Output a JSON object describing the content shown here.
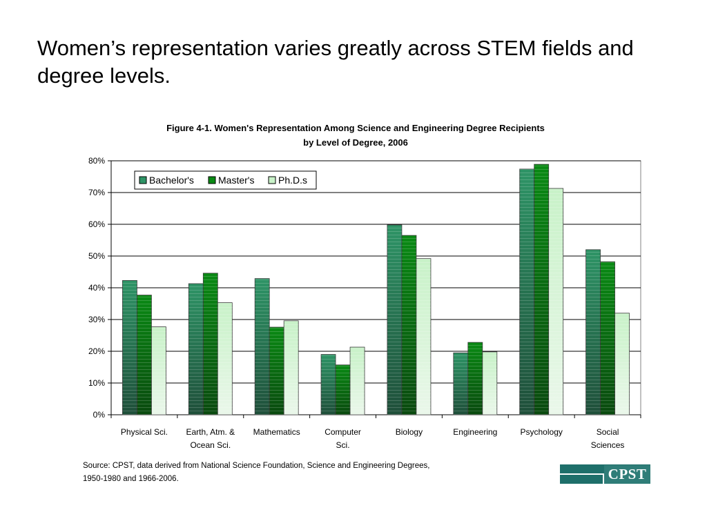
{
  "slide": {
    "title": "Women’s representation varies greatly across STEM fields and degree levels."
  },
  "chart_data": {
    "type": "bar",
    "title_line1": "Figure 4-1. Women's Representation Among Science and Engineering Degree Recipients",
    "title_line2": "by Level of Degree, 2006",
    "categories": [
      [
        "Physical Sci."
      ],
      [
        "Earth, Atm. &",
        "Ocean Sci."
      ],
      [
        "Mathematics"
      ],
      [
        "Computer",
        "Sci."
      ],
      [
        "Biology"
      ],
      [
        "Engineering"
      ],
      [
        "Psychology"
      ],
      [
        "Social",
        "Sciences"
      ]
    ],
    "series": [
      {
        "name": "Bachelor's",
        "values": [
          42.3,
          41.3,
          42.9,
          19.0,
          59.8,
          19.5,
          77.4,
          52.0
        ],
        "color": "#2e9466"
      },
      {
        "name": "Master's",
        "values": [
          37.7,
          44.6,
          27.6,
          15.7,
          56.5,
          22.8,
          78.9,
          48.2
        ],
        "color": "#0a8a14"
      },
      {
        "name": "Ph.D.s",
        "values": [
          27.7,
          35.3,
          29.6,
          21.3,
          49.2,
          19.8,
          71.3,
          32.0
        ],
        "color": "#c8f2c8"
      }
    ],
    "yticks": [
      "0%",
      "10%",
      "20%",
      "30%",
      "40%",
      "50%",
      "60%",
      "70%",
      "80%"
    ],
    "ylim": [
      0,
      80
    ],
    "grid": true,
    "legend_position": "top-left"
  },
  "source": {
    "line1": "Source: CPST, data derived from National Science Foundation, Science and Engineering Degrees,",
    "line2": "1950-1980 and 1966-2006."
  },
  "logo": {
    "text": "CPST",
    "color": "#1e6f6a"
  }
}
